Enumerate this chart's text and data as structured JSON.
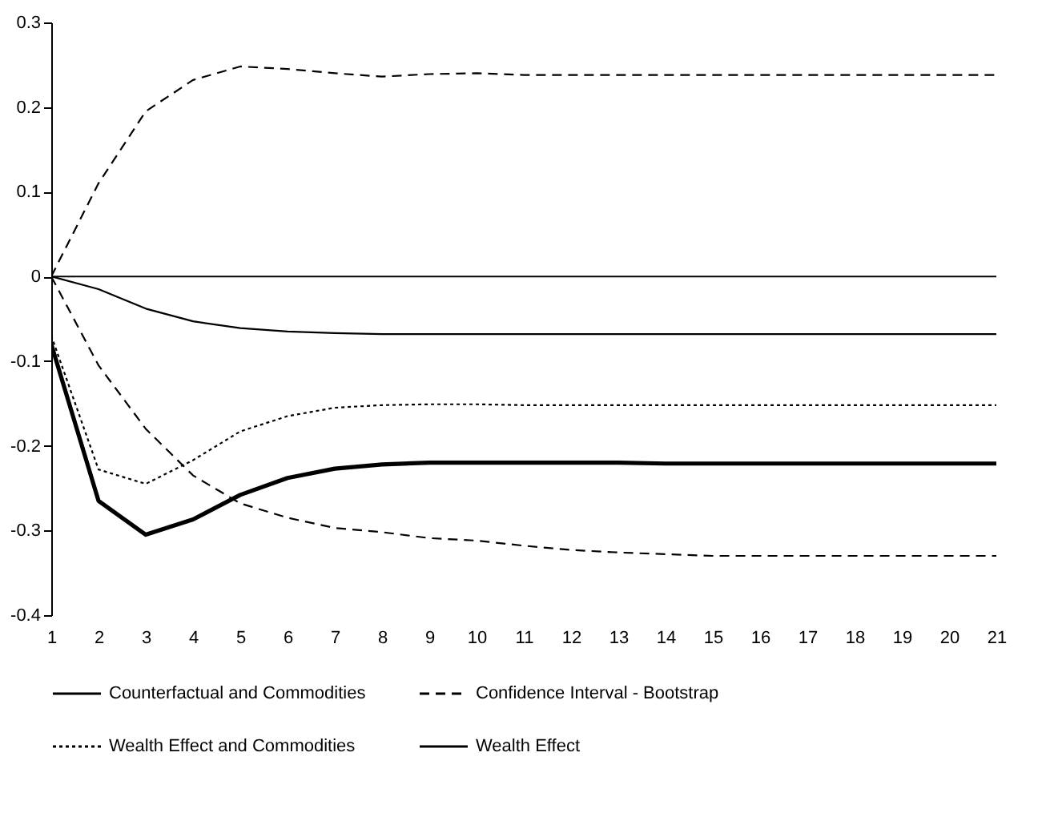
{
  "chart_data": {
    "type": "line",
    "x": [
      1,
      2,
      3,
      4,
      5,
      6,
      7,
      8,
      9,
      10,
      11,
      12,
      13,
      14,
      15,
      16,
      17,
      18,
      19,
      20,
      21
    ],
    "xlim": [
      1,
      21
    ],
    "xticks": [
      1,
      2,
      3,
      4,
      5,
      6,
      7,
      8,
      9,
      10,
      11,
      12,
      13,
      14,
      15,
      16,
      17,
      18,
      19,
      20,
      21
    ],
    "ylim": [
      -0.4,
      0.3
    ],
    "yticks": [
      -0.4,
      -0.3,
      -0.2,
      -0.1,
      0,
      0.1,
      0.2,
      0.3
    ],
    "grid": false,
    "legend": "bottom",
    "marker": "none",
    "ref_lines": [
      {
        "axis": "y",
        "value": 0,
        "color": "#000000"
      }
    ],
    "series": [
      {
        "name": "Counterfactual and Commodities",
        "color": "#000000",
        "line_style": "solid",
        "values": [
          0,
          -0.015,
          -0.038,
          -0.053,
          -0.061,
          -0.065,
          -0.067,
          -0.068,
          -0.068,
          -0.068,
          -0.068,
          -0.068,
          -0.068,
          -0.068,
          -0.068,
          -0.068,
          -0.068,
          -0.068,
          -0.068,
          -0.068,
          -0.068
        ]
      },
      {
        "name": "Confidence Interval - Bootstrap",
        "color": "#000000",
        "line_style": "dashed",
        "values": [
          0,
          0.11,
          0.195,
          0.232,
          0.248,
          0.245,
          0.24,
          0.236,
          0.239,
          0.24,
          0.238,
          0.238,
          0.238,
          0.238,
          0.238,
          0.238,
          0.238,
          0.238,
          0.238,
          0.238,
          0.238
        ]
      },
      {
        "name": "Wealth Effect and Commodities",
        "color": "#000000",
        "line_style": "dotted",
        "values": [
          -0.07,
          -0.228,
          -0.245,
          -0.217,
          -0.183,
          -0.165,
          -0.155,
          -0.152,
          -0.151,
          -0.151,
          -0.152,
          -0.152,
          -0.152,
          -0.152,
          -0.152,
          -0.152,
          -0.152,
          -0.152,
          -0.152,
          -0.152,
          -0.152
        ]
      },
      {
        "name": "Wealth Effect",
        "color": "#000000",
        "line_style": "solid",
        "values": [
          -0.08,
          -0.265,
          -0.305,
          -0.287,
          -0.258,
          -0.238,
          -0.227,
          -0.222,
          -0.22,
          -0.22,
          -0.22,
          -0.22,
          -0.22,
          -0.221,
          -0.221,
          -0.221,
          -0.221,
          -0.221,
          -0.221,
          -0.221,
          -0.221
        ]
      },
      {
        "color": "#000000",
        "line_style": "dashed",
        "values": [
          0,
          -0.105,
          -0.18,
          -0.235,
          -0.268,
          -0.285,
          -0.297,
          -0.302,
          -0.309,
          -0.312,
          -0.318,
          -0.323,
          -0.326,
          -0.328,
          -0.33,
          -0.33,
          -0.33,
          -0.33,
          -0.33,
          -0.33,
          -0.33
        ]
      }
    ]
  }
}
